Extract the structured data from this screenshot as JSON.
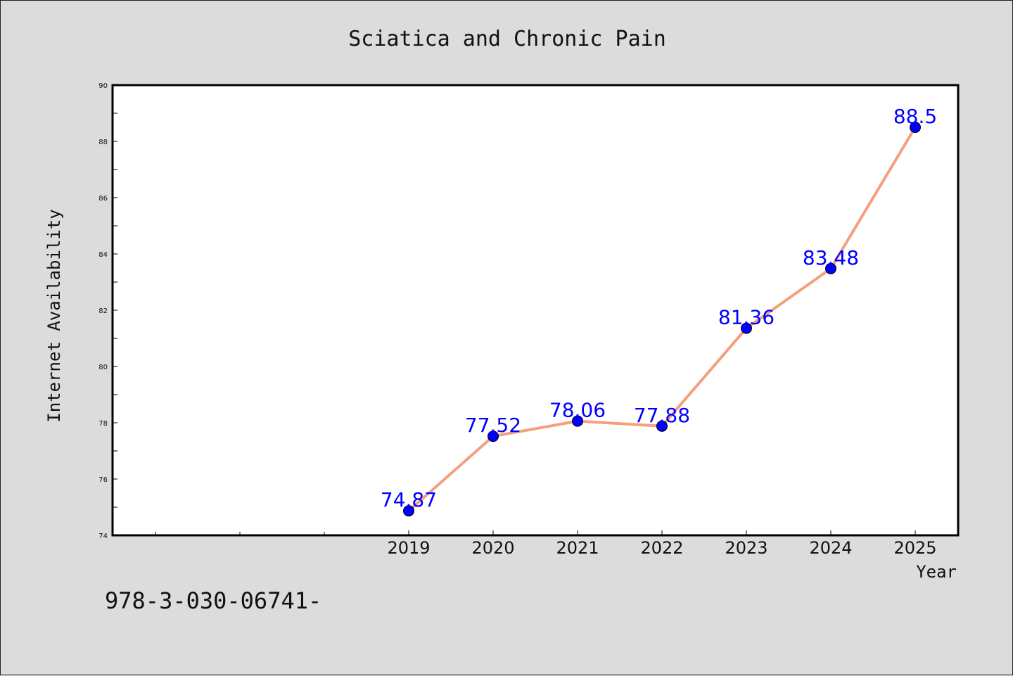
{
  "chart_data": {
    "type": "line",
    "title": "Sciatica and Chronic Pain",
    "xlabel": "Year",
    "ylabel": "Internet Availability",
    "categories": [
      "2019",
      "2020",
      "2021",
      "2022",
      "2023",
      "2024",
      "2025"
    ],
    "series": [
      {
        "values": [
          74.87,
          77.52,
          78.06,
          77.88,
          81.36,
          83.48,
          88.5
        ],
        "labels": [
          "74.87",
          "77.52",
          "78.06",
          "77.88",
          "81.36",
          "83.48",
          "88.5"
        ]
      }
    ],
    "ylim": [
      74,
      90
    ],
    "yticks": [
      "74",
      "76",
      "78",
      "80",
      "82",
      "84",
      "86",
      "88",
      "90"
    ],
    "grid": false,
    "legend": "none",
    "colors": {
      "line": "#f4a07e",
      "marker": "#0000ff",
      "data_label": "#0000ff",
      "background": "#dcdcdc",
      "plot_background": "#ffffff"
    }
  },
  "footer_text": "978-3-030-06741-"
}
